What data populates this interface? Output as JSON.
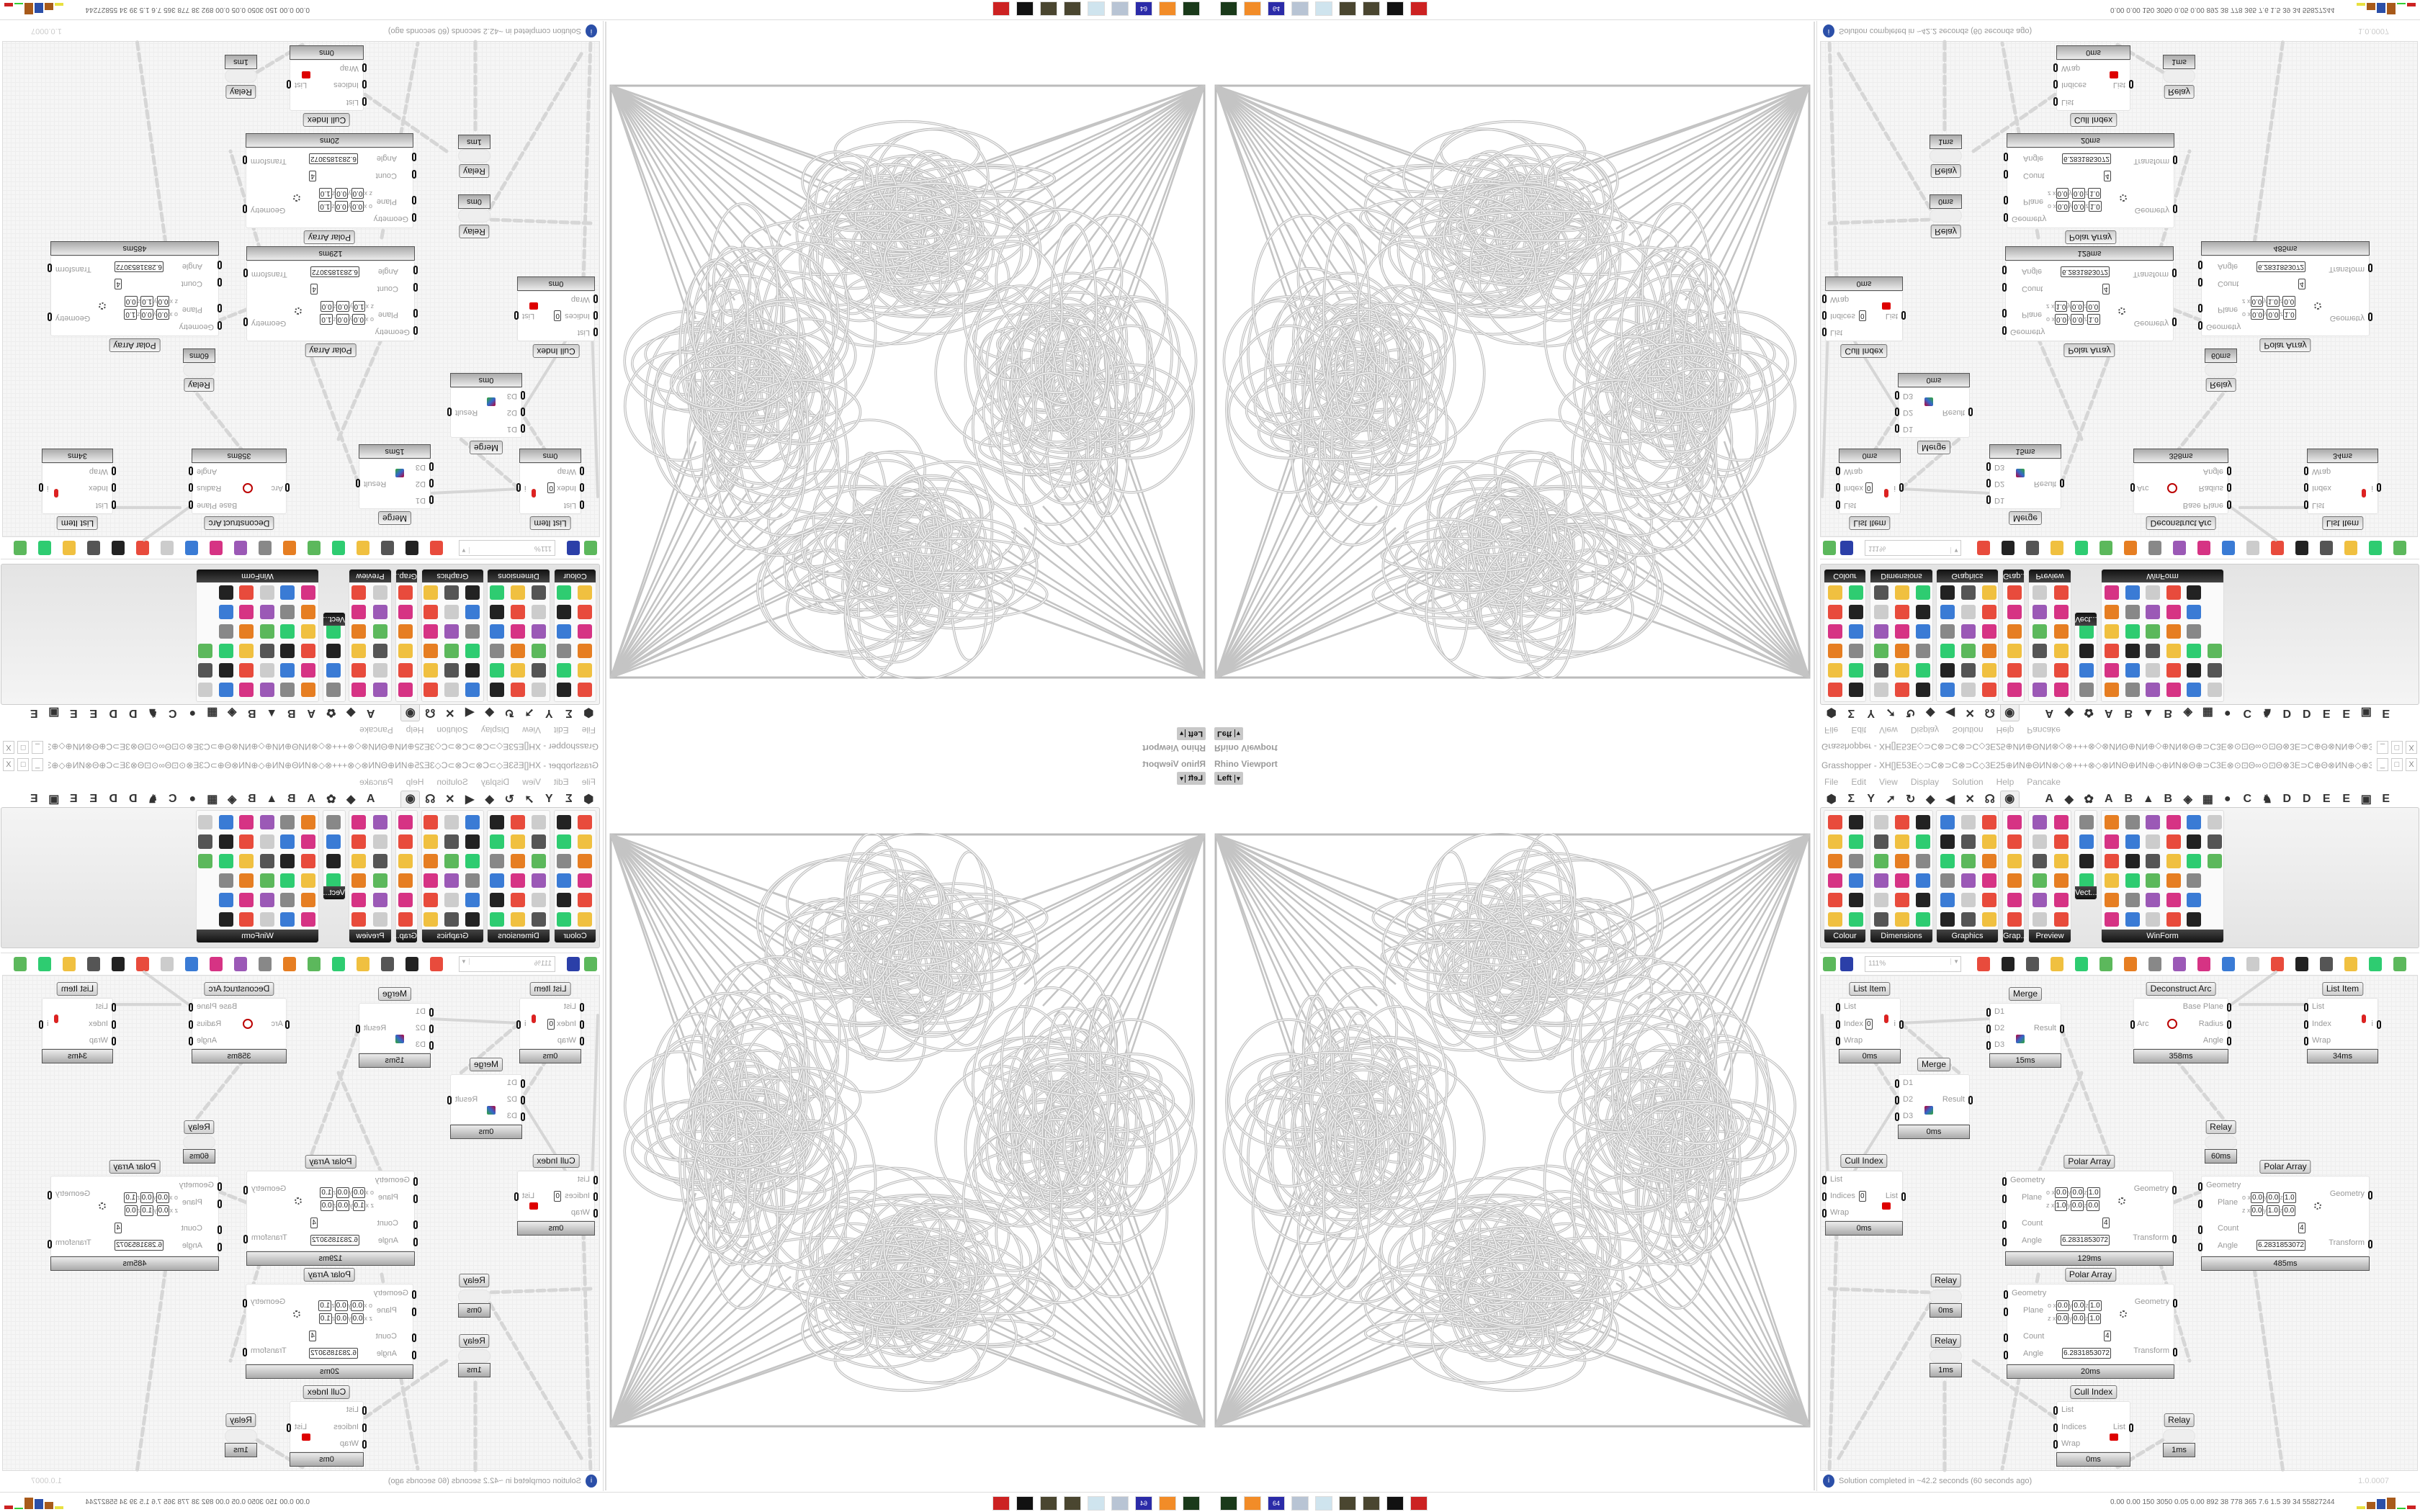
{
  "viewport": {
    "title": "Rhino Viewport",
    "view": "Left",
    "dropdown_icon": "▾"
  },
  "grasshopper": {
    "title": "Grasshopper - XH[]E53E◇⊃C⊗⊃C⊗⊃C◇3E25⊕ИN⊕ΘИN⊗◇⊗+++⊗◇⊗ИNΘ⊕ИN⊕◇⊕ИN⊗Θ⊕⊃C3E⊗⊙⊡Θ∞⊙⊡Θ⊗3E⊃C⊕Θ⊗ИN⊕◇⊕3E⊗3E⊞+25+⊞3E⊗3E⊕◇⊕⊗⊡3E⊞⊕+⊃C...",
    "window_buttons": [
      "_",
      "□",
      "X"
    ],
    "menu": [
      "File",
      "Edit",
      "View",
      "Display",
      "Solution",
      "Help",
      "Pancake"
    ],
    "tabs": [
      "⬢",
      "Σ",
      "Y",
      "➚",
      "↻",
      "◆",
      "◀",
      "✕",
      "☊",
      "◉",
      "",
      "A",
      "◆",
      "✿",
      "A",
      "B",
      "▲",
      "B",
      "◈",
      "▦",
      "●",
      "C",
      "♞",
      "D",
      "D",
      "E",
      "E",
      "▣",
      "E"
    ],
    "active_tab": "◉",
    "ribbon_groups": [
      "Colour",
      "Dimensions",
      "Graphics",
      "Grap...",
      "Preview",
      "Vect...",
      "WinForm"
    ],
    "zoom": "111%",
    "status": "Solution completed in ~42.2 seconds (60 seconds ago)",
    "version": "1.0.0007",
    "info_icon": "i"
  },
  "components": [
    {
      "type": "List Item",
      "inputs": [
        "List",
        "Index",
        "Wrap"
      ],
      "outputs": [
        "i"
      ],
      "index_value": "0",
      "time": "0ms"
    },
    {
      "type": "Merge",
      "inputs": [
        "D1",
        "D2",
        "D3"
      ],
      "outputs": [
        "Result"
      ],
      "time": "15ms"
    },
    {
      "type": "Merge",
      "inputs": [
        "D1",
        "D2",
        "D3"
      ],
      "outputs": [
        "Result"
      ],
      "time": "0ms"
    },
    {
      "type": "Deconstruct Arc",
      "inputs": [
        "Arc"
      ],
      "outputs": [
        "Base Plane",
        "Radius",
        "Angle"
      ],
      "time": "358ms"
    },
    {
      "type": "List Item",
      "inputs": [
        "List",
        "Index",
        "Wrap"
      ],
      "outputs": [
        "i"
      ],
      "time": "34ms"
    },
    {
      "type": "Cull Index",
      "inputs": [
        "List",
        "Indices",
        "Wrap"
      ],
      "outputs": [
        "List"
      ],
      "index_value": "0",
      "time": "0ms"
    },
    {
      "type": "Polar Array",
      "inputs": [
        "Geometry",
        "Plane",
        "Count",
        "Angle"
      ],
      "outputs": [
        "Geometry",
        "Transform"
      ],
      "plane_o": [
        "0.0",
        "0.0",
        "1.0"
      ],
      "plane_z": [
        "1.0",
        "0.0",
        "0.0"
      ],
      "count": "4",
      "angle": "6.2831853072",
      "time": "129ms"
    },
    {
      "type": "Polar Array",
      "inputs": [
        "Geometry",
        "Plane",
        "Count",
        "Angle"
      ],
      "outputs": [
        "Geometry",
        "Transform"
      ],
      "plane_o": [
        "0.0",
        "0.0",
        "1.0"
      ],
      "plane_z": [
        "0.0",
        "1.0",
        "0.0"
      ],
      "count": "4",
      "angle": "6.2831853072",
      "time": "485ms"
    },
    {
      "type": "Polar Array",
      "inputs": [
        "Geometry",
        "Plane",
        "Count",
        "Angle"
      ],
      "outputs": [
        "Geometry",
        "Transform"
      ],
      "plane_o": [
        "0.0",
        "0.0",
        "1.0"
      ],
      "plane_z": [
        "0.0",
        "0.0",
        "1.0"
      ],
      "count": "4",
      "angle": "6.2831853072",
      "time": "20ms"
    },
    {
      "type": "Cull Index",
      "inputs": [
        "List",
        "Indices",
        "Wrap"
      ],
      "outputs": [
        "List"
      ],
      "time": "0ms"
    },
    {
      "type": "Relay",
      "inputs": [],
      "outputs": [],
      "time": "60ms"
    },
    {
      "type": "Relay",
      "inputs": [],
      "outputs": [],
      "time": "0ms"
    },
    {
      "type": "Relay",
      "inputs": [],
      "outputs": [],
      "time": "1ms"
    },
    {
      "type": "Relay",
      "inputs": [],
      "outputs": [],
      "time": "1ms"
    }
  ],
  "taskbar": {
    "icons": [
      "terminal-icon",
      "firefox-icon",
      "floppy-64-icon",
      "scroll-icon",
      "notepad-icon",
      "bug-icon",
      "bug-icon",
      "cat-icon",
      "red-app-icon"
    ],
    "icon_colors": [
      "#1a3a1a",
      "#f28c28",
      "#2b2ba8",
      "#b8c4d4",
      "#cfe4ee",
      "#4a4630",
      "#4a4630",
      "#111111",
      "#cc2222"
    ],
    "floppy_label": "64",
    "stats": "0.00 0.00 150 3050 0.05 0.00 892 38 778 365 7.6 1.5 39 34 55827244"
  },
  "colors": {
    "accent": "#2b4fa8",
    "ribbon_label": "#222222",
    "canvas": "#f6f6f6",
    "wire": "#d6d6d6"
  }
}
